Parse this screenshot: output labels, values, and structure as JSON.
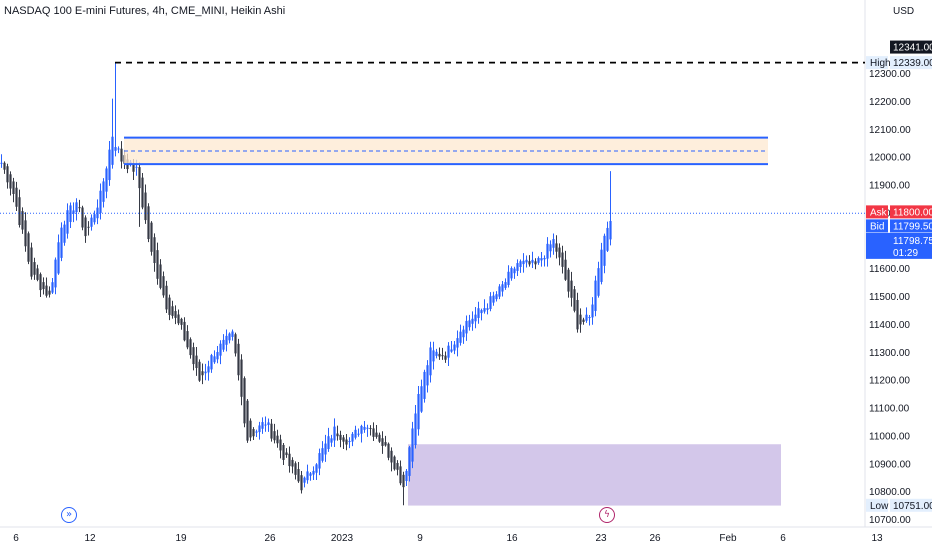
{
  "header": {
    "symbol_title": "NASDAQ 100 E-mini Futures, 4h, CME_MINI, Heikin Ashi",
    "currency": "USD"
  },
  "icons": {
    "goto_realtime": "double-chevron-right-icon",
    "news_flash": "lightning-icon"
  },
  "chart_data": {
    "type": "candlestick",
    "style": "Heikin Ashi",
    "interval": "4h",
    "y_axis": {
      "ticks": [
        12300,
        12200,
        12100,
        12000,
        11900,
        11800,
        11700,
        11600,
        11500,
        11400,
        11300,
        11200,
        11100,
        11000,
        10900,
        10800,
        10700
      ],
      "tick_labels": [
        "12300.00",
        "12200.00",
        "12100.00",
        "12000.00",
        "11900.00",
        "11800.00",
        "11700.00",
        "11600.00",
        "11500.00",
        "11400.00",
        "11300.00",
        "11200.00",
        "11100.00",
        "11000.00",
        "10900.00",
        "10800.00",
        "10700.00"
      ],
      "range": [
        10670,
        12420
      ]
    },
    "x_axis": {
      "tick_labels": [
        "6",
        "12",
        "19",
        "26",
        "2023",
        "9",
        "16",
        "23",
        "26",
        "Feb",
        "6",
        "13"
      ]
    },
    "colors": {
      "up": "#2962ff",
      "down": "#363a45"
    },
    "anchors": [
      {
        "i": 0,
        "p": 11980
      },
      {
        "i": 4,
        "p": 11870
      },
      {
        "i": 10,
        "p": 11580
      },
      {
        "i": 16,
        "p": 11500
      },
      {
        "i": 20,
        "p": 11760
      },
      {
        "i": 25,
        "p": 11840
      },
      {
        "i": 28,
        "p": 11720
      },
      {
        "i": 33,
        "p": 11860
      },
      {
        "i": 37,
        "p": 12080
      },
      {
        "i": 40,
        "p": 11990
      },
      {
        "i": 45,
        "p": 11950
      },
      {
        "i": 50,
        "p": 11650
      },
      {
        "i": 55,
        "p": 11470
      },
      {
        "i": 60,
        "p": 11380
      },
      {
        "i": 66,
        "p": 11200
      },
      {
        "i": 71,
        "p": 11300
      },
      {
        "i": 77,
        "p": 11360
      },
      {
        "i": 82,
        "p": 10990
      },
      {
        "i": 88,
        "p": 11050
      },
      {
        "i": 94,
        "p": 10930
      },
      {
        "i": 100,
        "p": 10820
      },
      {
        "i": 106,
        "p": 10930
      },
      {
        "i": 111,
        "p": 11020
      },
      {
        "i": 116,
        "p": 10980
      },
      {
        "i": 121,
        "p": 11050
      },
      {
        "i": 126,
        "p": 10990
      },
      {
        "i": 131,
        "p": 10900
      },
      {
        "i": 134,
        "p": 10820
      },
      {
        "i": 138,
        "p": 11100
      },
      {
        "i": 143,
        "p": 11300
      },
      {
        "i": 148,
        "p": 11290
      },
      {
        "i": 154,
        "p": 11400
      },
      {
        "i": 160,
        "p": 11450
      },
      {
        "i": 166,
        "p": 11520
      },
      {
        "i": 172,
        "p": 11620
      },
      {
        "i": 178,
        "p": 11610
      },
      {
        "i": 184,
        "p": 11700
      },
      {
        "i": 188,
        "p": 11560
      },
      {
        "i": 192,
        "p": 11400
      },
      {
        "i": 196,
        "p": 11420
      },
      {
        "i": 200,
        "p": 11680
      },
      {
        "i": 203,
        "p": 11790
      }
    ],
    "levels": {
      "high": {
        "label": "High",
        "value": "12339.00",
        "price": 12339,
        "color": "#000000"
      },
      "last_marker": {
        "value": "12341.00",
        "price": 12341
      },
      "low": {
        "label": "Low",
        "value": "10751.00",
        "price": 10751
      },
      "ask": {
        "label": "Ask",
        "value": "11800.00",
        "price": 11800,
        "color": "#f23645"
      },
      "bid": {
        "label": "Bid",
        "value": "11799.50",
        "price": 11799.5,
        "color": "#2962ff"
      },
      "last": {
        "value": "11798.75",
        "countdown": "01:29",
        "price": 11798.75,
        "color": "#2962ff"
      }
    },
    "zones": [
      {
        "name": "supply-zone",
        "top": 12070,
        "bottom": 11975,
        "mid": 12022,
        "fill": "#fde8d0",
        "border": "#2962ff"
      },
      {
        "name": "demand-zone",
        "top": 10970,
        "bottom": 10750,
        "fill": "#d1c4e9"
      }
    ]
  }
}
